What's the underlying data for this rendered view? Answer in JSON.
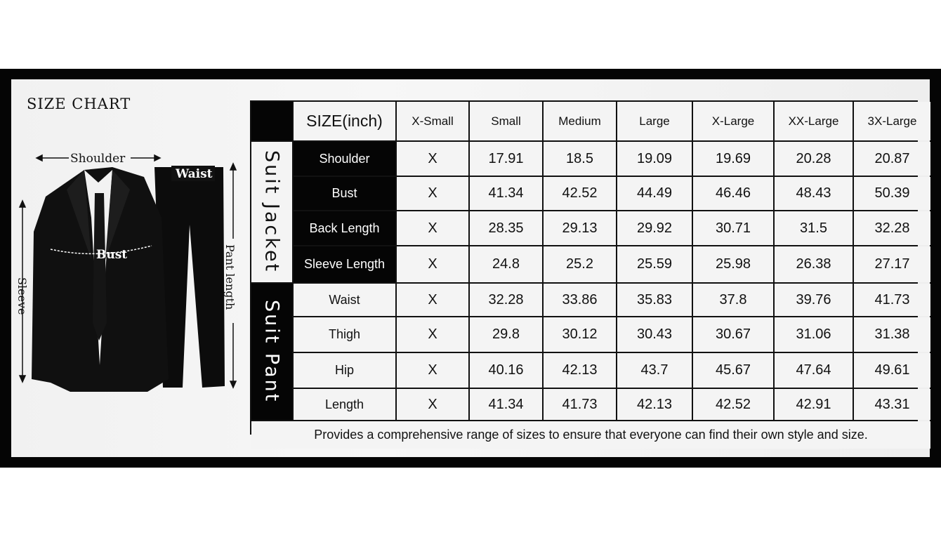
{
  "title": "SIZE CHART",
  "figure_labels": {
    "shoulder": "Shoulder",
    "waist": "Waist",
    "bust": "Bust",
    "sleeve": "Sleeve",
    "pant_length": "Pant length"
  },
  "table": {
    "header": [
      "SIZE(inch)",
      "X-Small",
      "Small",
      "Medium",
      "Large",
      "X-Large",
      "XX-Large",
      "3X-Large"
    ],
    "sections": [
      {
        "label": "Suit Jacket",
        "rows": [
          {
            "label": "Shoulder",
            "values": [
              "X",
              "17.91",
              "18.5",
              "19.09",
              "19.69",
              "20.28",
              "20.87"
            ]
          },
          {
            "label": "Bust",
            "values": [
              "X",
              "41.34",
              "42.52",
              "44.49",
              "46.46",
              "48.43",
              "50.39"
            ]
          },
          {
            "label": "Back Length",
            "values": [
              "X",
              "28.35",
              "29.13",
              "29.92",
              "30.71",
              "31.5",
              "32.28"
            ]
          },
          {
            "label": "Sleeve Length",
            "values": [
              "X",
              "24.8",
              "25.2",
              "25.59",
              "25.98",
              "26.38",
              "27.17"
            ]
          }
        ]
      },
      {
        "label": "Suit Pant",
        "rows": [
          {
            "label": "Waist",
            "values": [
              "X",
              "32.28",
              "33.86",
              "35.83",
              "37.8",
              "39.76",
              "41.73"
            ]
          },
          {
            "label": "Thigh",
            "values": [
              "X",
              "29.8",
              "30.12",
              "30.43",
              "30.67",
              "31.06",
              "31.38"
            ]
          },
          {
            "label": "Hip",
            "values": [
              "X",
              "40.16",
              "42.13",
              "43.7",
              "45.67",
              "47.64",
              "49.61"
            ]
          },
          {
            "label": "Length",
            "values": [
              "X",
              "41.34",
              "41.73",
              "42.13",
              "42.52",
              "42.91",
              "43.31"
            ]
          }
        ]
      }
    ],
    "footer": "Provides a comprehensive range of sizes to ensure that everyone can find their own style and size."
  }
}
